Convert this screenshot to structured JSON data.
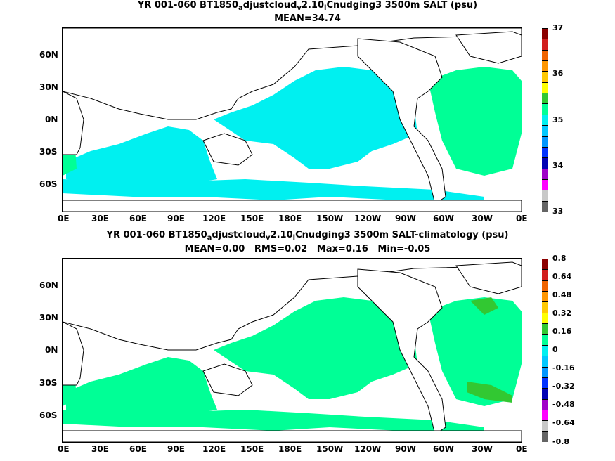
{
  "panel1": {
    "title_parts": [
      "YR 001-060 BT1850",
      "a",
      "djustcloud",
      "v",
      "2.10",
      "l",
      "Cnudging3 3500m SALT (psu)"
    ],
    "subtitle": "MEAN=34.74",
    "colorbar_labels": [
      "37",
      "36",
      "35",
      "34",
      "33"
    ],
    "colorbar_colors": [
      "#8c0000",
      "#d21e1e",
      "#f06400",
      "#ff9600",
      "#ffc800",
      "#ffff00",
      "#32c832",
      "#00ff96",
      "#00f0f0",
      "#00c8ff",
      "#0096ff",
      "#0032ff",
      "#0000b4",
      "#a000c8",
      "#ff00ff",
      "#c8c8c8",
      "#646464"
    ]
  },
  "panel2": {
    "title_parts": [
      "YR 001-060 BT1850",
      "a",
      "djustcloud",
      "v",
      "2.10",
      "l",
      "Cnudging3 3500m SALT-climatology (psu)"
    ],
    "subtitle": "MEAN=0.00   RMS=0.02   Max=0.16   Min=-0.05",
    "colorbar_labels": [
      "0.8",
      "0.64",
      "0.48",
      "0.32",
      "0.16",
      "0",
      "-0.16",
      "-0.32",
      "-0.48",
      "-0.64",
      "-0.8"
    ],
    "colorbar_colors": [
      "#8c0000",
      "#d21e1e",
      "#f06400",
      "#ff9600",
      "#ffc800",
      "#ffff00",
      "#32c832",
      "#00ff96",
      "#00f0f0",
      "#00c8ff",
      "#0096ff",
      "#0032ff",
      "#0000b4",
      "#a000c8",
      "#ff00ff",
      "#c8c8c8",
      "#646464"
    ]
  },
  "axes": {
    "lat_labels": [
      "60N",
      "30N",
      "0N",
      "30S",
      "60S"
    ],
    "lon_labels": [
      "0E",
      "30E",
      "60E",
      "90E",
      "120E",
      "150E",
      "180E",
      "150W",
      "120W",
      "90W",
      "60W",
      "30W",
      "0E"
    ]
  },
  "colors": {
    "field1": "#00f0f0",
    "field1_atlantic": "#00ff96",
    "field2": "#00ff96",
    "field2_high": "#32c832",
    "land": "#ffffff",
    "coast": "#000000"
  }
}
